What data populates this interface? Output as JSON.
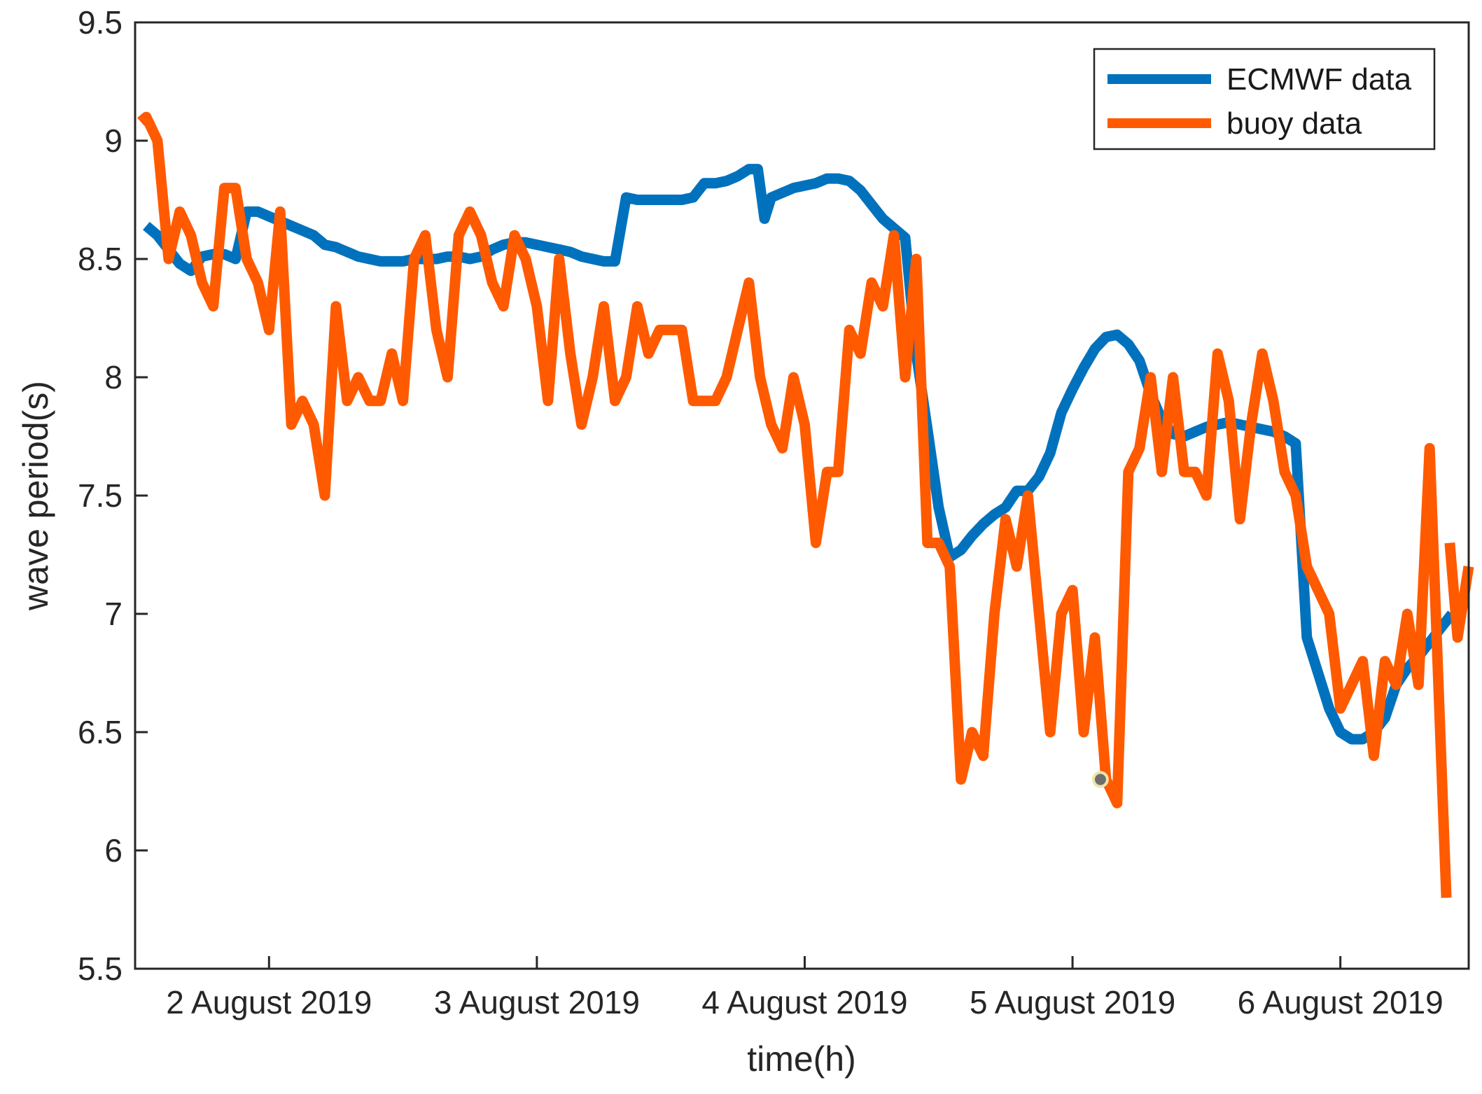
{
  "chart_data": {
    "type": "line",
    "title": "",
    "xlabel": "time(h)",
    "ylabel": "wave period(s)",
    "xlim": [
      0,
      119.5
    ],
    "ylim": [
      5.5,
      9.5
    ],
    "x_unit": "hours from 1 August 2019 12:00",
    "xticks": [
      {
        "x": 12,
        "label": "2 August 2019"
      },
      {
        "x": 36,
        "label": "3 August 2019"
      },
      {
        "x": 60,
        "label": "4 August 2019"
      },
      {
        "x": 84,
        "label": "5 August 2019"
      },
      {
        "x": 108,
        "label": "6 August 2019"
      }
    ],
    "yticks": [
      {
        "y": 5.5,
        "label": "5.5"
      },
      {
        "y": 6,
        "label": "6"
      },
      {
        "y": 6.5,
        "label": "6.5"
      },
      {
        "y": 7,
        "label": "7"
      },
      {
        "y": 7.5,
        "label": "7.5"
      },
      {
        "y": 8,
        "label": "8"
      },
      {
        "y": 8.5,
        "label": "8.5"
      },
      {
        "y": 9,
        "label": "9"
      },
      {
        "y": 9.5,
        "label": "9.5"
      }
    ],
    "legend_position": "top-right",
    "series": [
      {
        "name": "ECMWF data",
        "color": "#0072bd",
        "points": [
          [
            1,
            8.64
          ],
          [
            2,
            8.6
          ],
          [
            3,
            8.54
          ],
          [
            4,
            8.48
          ],
          [
            5,
            8.45
          ],
          [
            6,
            8.51
          ],
          [
            7,
            8.52
          ],
          [
            8,
            8.52
          ],
          [
            9,
            8.5
          ],
          [
            10,
            8.7
          ],
          [
            11,
            8.7
          ],
          [
            12,
            8.68
          ],
          [
            13,
            8.66
          ],
          [
            14,
            8.64
          ],
          [
            15,
            8.62
          ],
          [
            16,
            8.6
          ],
          [
            17,
            8.56
          ],
          [
            18,
            8.55
          ],
          [
            19,
            8.53
          ],
          [
            20,
            8.51
          ],
          [
            21,
            8.5
          ],
          [
            22,
            8.49
          ],
          [
            23,
            8.49
          ],
          [
            24,
            8.49
          ],
          [
            25,
            8.5
          ],
          [
            26,
            8.5
          ],
          [
            27,
            8.5
          ],
          [
            28,
            8.51
          ],
          [
            29,
            8.51
          ],
          [
            30,
            8.5
          ],
          [
            31,
            8.51
          ],
          [
            32,
            8.54
          ],
          [
            33,
            8.56
          ],
          [
            34,
            8.57
          ],
          [
            35,
            8.57
          ],
          [
            36,
            8.56
          ],
          [
            37,
            8.55
          ],
          [
            38,
            8.54
          ],
          [
            39,
            8.53
          ],
          [
            40,
            8.51
          ],
          [
            41,
            8.5
          ],
          [
            42,
            8.49
          ],
          [
            43,
            8.49
          ],
          [
            44,
            8.76
          ],
          [
            45,
            8.75
          ],
          [
            46,
            8.75
          ],
          [
            47,
            8.75
          ],
          [
            48,
            8.75
          ],
          [
            49,
            8.75
          ],
          [
            50,
            8.76
          ],
          [
            51,
            8.82
          ],
          [
            52,
            8.82
          ],
          [
            53,
            8.83
          ],
          [
            54,
            8.85
          ],
          [
            55,
            8.88
          ],
          [
            55.8,
            8.88
          ],
          [
            56.4,
            8.67
          ],
          [
            57,
            8.76
          ],
          [
            58,
            8.78
          ],
          [
            59,
            8.8
          ],
          [
            60,
            8.81
          ],
          [
            61,
            8.82
          ],
          [
            62,
            8.84
          ],
          [
            63,
            8.84
          ],
          [
            64,
            8.83
          ],
          [
            65,
            8.79
          ],
          [
            66,
            8.73
          ],
          [
            67,
            8.67
          ],
          [
            68,
            8.63
          ],
          [
            69,
            8.59
          ],
          [
            70,
            8.1
          ],
          [
            71,
            7.78
          ],
          [
            72,
            7.45
          ],
          [
            73,
            7.24
          ],
          [
            74,
            7.27
          ],
          [
            75,
            7.33
          ],
          [
            76,
            7.38
          ],
          [
            77,
            7.42
          ],
          [
            78,
            7.45
          ],
          [
            79,
            7.52
          ],
          [
            80,
            7.52
          ],
          [
            81,
            7.58
          ],
          [
            82,
            7.68
          ],
          [
            83,
            7.85
          ],
          [
            84,
            7.95
          ],
          [
            85,
            8.04
          ],
          [
            86,
            8.12
          ],
          [
            87,
            8.17
          ],
          [
            88,
            8.18
          ],
          [
            89,
            8.14
          ],
          [
            90,
            8.07
          ],
          [
            91,
            7.93
          ],
          [
            92,
            7.82
          ],
          [
            93,
            7.76
          ],
          [
            94,
            7.75
          ],
          [
            95,
            7.77
          ],
          [
            96,
            7.79
          ],
          [
            97,
            7.8
          ],
          [
            98,
            7.81
          ],
          [
            99,
            7.8
          ],
          [
            100,
            7.79
          ],
          [
            101,
            7.78
          ],
          [
            102,
            7.77
          ],
          [
            103,
            7.75
          ],
          [
            104,
            7.72
          ],
          [
            105,
            6.9
          ],
          [
            106,
            6.75
          ],
          [
            107,
            6.6
          ],
          [
            108,
            6.5
          ],
          [
            109,
            6.47
          ],
          [
            110,
            6.47
          ],
          [
            111,
            6.5
          ],
          [
            112,
            6.56
          ],
          [
            113,
            6.7
          ],
          [
            114,
            6.77
          ],
          [
            115,
            6.82
          ],
          [
            116,
            6.88
          ],
          [
            117,
            6.94
          ],
          [
            118,
            7.0
          ]
        ]
      },
      {
        "name": "buoy data",
        "color": "#ff5a00",
        "points": [
          [
            0.5,
            9.08
          ],
          [
            1,
            9.1
          ],
          [
            2,
            9.0
          ],
          [
            3,
            8.5
          ],
          [
            4,
            8.7
          ],
          [
            5,
            8.6
          ],
          [
            6,
            8.4
          ],
          [
            7,
            8.3
          ],
          [
            8,
            8.8
          ],
          [
            9,
            8.8
          ],
          [
            10,
            8.5
          ],
          [
            11,
            8.4
          ],
          [
            12,
            8.2
          ],
          [
            13,
            8.7
          ],
          [
            14,
            7.8
          ],
          [
            15,
            7.9
          ],
          [
            16,
            7.8
          ],
          [
            17,
            7.5
          ],
          [
            18,
            8.3
          ],
          [
            19,
            7.9
          ],
          [
            20,
            8.0
          ],
          [
            21,
            7.9
          ],
          [
            22,
            7.9
          ],
          [
            23,
            8.1
          ],
          [
            24,
            7.9
          ],
          [
            25,
            8.5
          ],
          [
            26,
            8.6
          ],
          [
            27,
            8.2
          ],
          [
            28,
            8.0
          ],
          [
            29,
            8.6
          ],
          [
            30,
            8.7
          ],
          [
            31,
            8.6
          ],
          [
            32,
            8.4
          ],
          [
            33,
            8.3
          ],
          [
            34,
            8.6
          ],
          [
            35,
            8.5
          ],
          [
            36,
            8.3
          ],
          [
            37,
            7.9
          ],
          [
            38,
            8.5
          ],
          [
            39,
            8.1
          ],
          [
            40,
            7.8
          ],
          [
            41,
            8.0
          ],
          [
            42,
            8.3
          ],
          [
            43,
            7.9
          ],
          [
            44,
            8.0
          ],
          [
            45,
            8.3
          ],
          [
            46,
            8.1
          ],
          [
            47,
            8.2
          ],
          [
            48,
            8.2
          ],
          [
            49,
            8.2
          ],
          [
            50,
            7.9
          ],
          [
            51,
            7.9
          ],
          [
            52,
            7.9
          ],
          [
            53,
            8.0
          ],
          [
            54,
            8.2
          ],
          [
            55,
            8.4
          ],
          [
            56,
            8.0
          ],
          [
            57,
            7.8
          ],
          [
            58,
            7.7
          ],
          [
            59,
            8.0
          ],
          [
            60,
            7.8
          ],
          [
            61,
            7.3
          ],
          [
            62,
            7.6
          ],
          [
            63,
            7.6
          ],
          [
            64,
            8.2
          ],
          [
            65,
            8.1
          ],
          [
            66,
            8.4
          ],
          [
            67,
            8.3
          ],
          [
            68,
            8.6
          ],
          [
            69,
            8.0
          ],
          [
            70,
            8.5
          ],
          [
            71,
            7.3
          ],
          [
            72,
            7.3
          ],
          [
            73,
            7.2
          ],
          [
            74,
            6.3
          ],
          [
            75,
            6.5
          ],
          [
            76,
            6.4
          ],
          [
            77,
            7.0
          ],
          [
            78,
            7.4
          ],
          [
            79,
            7.2
          ],
          [
            80,
            7.5
          ],
          [
            81,
            7.0
          ],
          [
            82,
            6.5
          ],
          [
            83,
            7.0
          ],
          [
            84,
            7.1
          ],
          [
            85,
            6.5
          ],
          [
            86,
            6.9
          ],
          [
            87,
            6.3
          ],
          [
            88,
            6.2
          ],
          [
            89,
            7.6
          ],
          [
            90,
            7.7
          ],
          [
            91,
            8.0
          ],
          [
            92,
            7.6
          ],
          [
            93,
            8.0
          ],
          [
            94,
            7.6
          ],
          [
            95,
            7.6
          ],
          [
            96,
            7.5
          ],
          [
            97,
            8.1
          ],
          [
            98,
            7.9
          ],
          [
            99,
            7.4
          ],
          [
            100,
            7.8
          ],
          [
            101,
            8.1
          ],
          [
            102,
            7.9
          ],
          [
            103,
            7.6
          ],
          [
            104,
            7.5
          ],
          [
            105,
            7.2
          ],
          [
            106,
            7.1
          ],
          [
            107,
            7.0
          ],
          [
            108,
            6.6
          ],
          [
            109,
            6.7
          ],
          [
            110,
            6.8
          ],
          [
            111,
            6.4
          ],
          [
            112,
            6.8
          ],
          [
            113,
            6.7
          ],
          [
            114,
            7.0
          ],
          [
            115,
            6.7
          ],
          [
            116,
            7.7
          ],
          [
            117.5,
            5.8
          ],
          null,
          [
            117.8,
            7.3
          ],
          [
            118.5,
            6.9
          ],
          [
            119.5,
            7.2
          ]
        ]
      }
    ],
    "marker": {
      "x": 86.5,
      "y": 6.3,
      "color": "#6e6e6e",
      "edge": "#ece6a8"
    }
  }
}
